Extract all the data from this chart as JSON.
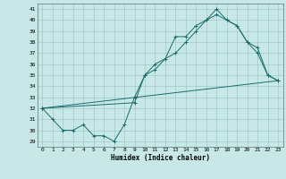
{
  "xlabel": "Humidex (Indice chaleur)",
  "bg_color": "#c8e8e8",
  "grid_color": "#a0c8c8",
  "line_color": "#1a6b6b",
  "xlim": [
    -0.5,
    23.5
  ],
  "ylim": [
    28.5,
    41.5
  ],
  "yticks": [
    29,
    30,
    31,
    32,
    33,
    34,
    35,
    36,
    37,
    38,
    39,
    40,
    41
  ],
  "xticks": [
    0,
    1,
    2,
    3,
    4,
    5,
    6,
    7,
    8,
    9,
    10,
    11,
    12,
    13,
    14,
    15,
    16,
    17,
    18,
    19,
    20,
    21,
    22,
    23
  ],
  "line1_x": [
    0,
    1,
    2,
    3,
    4,
    5,
    6,
    7,
    8,
    9,
    10,
    11,
    12,
    13,
    14,
    15,
    16,
    17,
    18,
    19,
    20,
    21,
    22,
    23
  ],
  "line1_y": [
    32,
    31,
    30,
    30,
    30.5,
    29.5,
    29.5,
    29,
    30.5,
    33,
    35,
    36,
    36.5,
    38.5,
    38.5,
    39.5,
    40,
    41,
    40,
    39.5,
    38,
    37.5,
    35,
    34.5
  ],
  "line2_x": [
    0,
    9,
    10,
    11,
    12,
    13,
    14,
    15,
    16,
    17,
    18,
    19,
    20,
    21,
    22,
    23
  ],
  "line2_y": [
    32,
    32.5,
    35,
    35.5,
    36.5,
    37,
    38,
    39,
    40,
    40.5,
    40,
    39.5,
    38,
    37,
    35,
    34.5
  ],
  "line3_x": [
    0,
    23
  ],
  "line3_y": [
    32,
    34.5
  ]
}
